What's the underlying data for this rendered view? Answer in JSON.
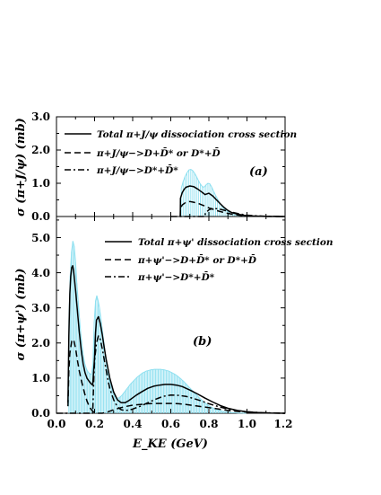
{
  "chart_data": [
    {
      "type": "line",
      "panel_label": "(a)",
      "ylabel": "σ (π+J/ψ) (mb)",
      "xlim": [
        0.0,
        1.2
      ],
      "ylim": [
        0.0,
        3.0
      ],
      "yticks": [
        "0.0",
        "1.0",
        "2.0",
        "3.0"
      ],
      "x_tick_values": [
        0.0,
        0.2,
        0.4,
        0.6,
        0.8,
        1.0,
        1.2
      ],
      "y_tick_values": [
        0.0,
        1.0,
        2.0,
        3.0
      ],
      "legend": [
        {
          "name": "Total π+J/ψ dissociation cross section",
          "style": "solid"
        },
        {
          "name": "π+J/ψ−>D+D̄* or D*+D̄",
          "style": "dashed"
        },
        {
          "name": "π+J/ψ−>D*+D̄*",
          "style": "dashdot"
        }
      ],
      "series": [
        {
          "name": "Total π+J/ψ dissociation cross section",
          "style": "solid",
          "x": [
            0.65,
            0.651,
            0.66,
            0.67,
            0.68,
            0.7,
            0.72,
            0.74,
            0.76,
            0.78,
            0.79,
            0.8,
            0.82,
            0.84,
            0.86,
            0.88,
            0.9,
            0.92,
            0.95,
            0.98,
            1.0,
            1.05,
            1.1,
            1.2
          ],
          "y": [
            0.0,
            0.55,
            0.72,
            0.82,
            0.88,
            0.92,
            0.9,
            0.83,
            0.75,
            0.66,
            0.68,
            0.7,
            0.62,
            0.5,
            0.38,
            0.27,
            0.18,
            0.12,
            0.07,
            0.04,
            0.025,
            0.01,
            0.003,
            0.0
          ]
        },
        {
          "name": "π+J/ψ−>D+D̄* or D*+D̄",
          "style": "dashed",
          "x": [
            0.65,
            0.651,
            0.66,
            0.68,
            0.7,
            0.72,
            0.75,
            0.78,
            0.8,
            0.84,
            0.88,
            0.92,
            0.96,
            1.0,
            1.05,
            1.1,
            1.2
          ],
          "y": [
            0.0,
            0.25,
            0.35,
            0.43,
            0.45,
            0.43,
            0.38,
            0.31,
            0.26,
            0.18,
            0.12,
            0.07,
            0.04,
            0.02,
            0.01,
            0.003,
            0.0
          ]
        },
        {
          "name": "π+J/ψ−>D*+D̄*",
          "style": "dashdot",
          "x": [
            0.6,
            0.78,
            0.781,
            0.8,
            0.82,
            0.85,
            0.88,
            0.92,
            0.96,
            1.0,
            1.05,
            1.1,
            1.2
          ],
          "y": [
            0.0,
            0.0,
            0.1,
            0.2,
            0.24,
            0.23,
            0.19,
            0.13,
            0.08,
            0.04,
            0.02,
            0.007,
            0.0
          ]
        }
      ],
      "error_band": {
        "x": [
          0.655,
          0.665,
          0.675,
          0.685,
          0.695,
          0.705,
          0.715,
          0.725,
          0.735,
          0.745,
          0.755,
          0.765,
          0.775,
          0.785,
          0.795,
          0.805,
          0.815,
          0.825,
          0.835,
          0.845,
          0.855,
          0.865,
          0.875,
          0.885,
          0.895,
          0.905,
          0.915,
          0.925,
          0.935,
          0.945,
          0.955,
          0.965,
          0.975,
          0.985,
          0.995
        ],
        "y": [
          0.85,
          1.05,
          1.2,
          1.32,
          1.4,
          1.42,
          1.38,
          1.3,
          1.2,
          1.08,
          0.98,
          0.9,
          0.88,
          0.95,
          1.0,
          0.98,
          0.88,
          0.76,
          0.64,
          0.53,
          0.43,
          0.34,
          0.27,
          0.21,
          0.16,
          0.12,
          0.09,
          0.07,
          0.05,
          0.04,
          0.03,
          0.02,
          0.015,
          0.01,
          0.005
        ],
        "color": "#8fe0f0"
      }
    },
    {
      "type": "line",
      "panel_label": "(b)",
      "ylabel": "σ (π+ψ') (mb)",
      "xlabel": "E_KE (GeV)",
      "xticks": [
        "0.0",
        "0.2",
        "0.4",
        "0.6",
        "0.8",
        "1.0",
        "1.2"
      ],
      "yticks": [
        "0.0",
        "1.0",
        "2.0",
        "3.0",
        "4.0",
        "5.0"
      ],
      "xlim": [
        0.0,
        1.2
      ],
      "ylim": [
        0.0,
        5.6
      ],
      "x_tick_values": [
        0.0,
        0.2,
        0.4,
        0.6,
        0.8,
        1.0,
        1.2
      ],
      "y_tick_values": [
        0.0,
        1.0,
        2.0,
        3.0,
        4.0,
        5.0
      ],
      "legend": [
        {
          "name": "Total π+ψ' dissociation cross section",
          "style": "solid"
        },
        {
          "name": "π+ψ'−>D+D̄* or D*+D̄",
          "style": "dashed"
        },
        {
          "name": "π+ψ'−>D*+D̄*",
          "style": "dashdot"
        }
      ],
      "series": [
        {
          "name": "Total π+ψ' dissociation cross section",
          "style": "solid",
          "x": [
            0.06,
            0.065,
            0.07,
            0.075,
            0.08,
            0.085,
            0.09,
            0.1,
            0.11,
            0.12,
            0.13,
            0.14,
            0.15,
            0.16,
            0.17,
            0.18,
            0.19,
            0.2,
            0.205,
            0.21,
            0.22,
            0.23,
            0.24,
            0.25,
            0.26,
            0.28,
            0.3,
            0.32,
            0.34,
            0.36,
            0.38,
            0.4,
            0.42,
            0.45,
            0.48,
            0.51,
            0.54,
            0.57,
            0.6,
            0.63,
            0.66,
            0.7,
            0.74,
            0.78,
            0.82,
            0.86,
            0.9,
            0.95,
            1.0,
            1.05,
            1.1,
            1.2
          ],
          "y": [
            0.3,
            2.2,
            3.4,
            3.9,
            4.15,
            4.2,
            4.05,
            3.5,
            2.9,
            2.3,
            1.8,
            1.4,
            1.15,
            1.0,
            0.92,
            0.85,
            0.8,
            1.6,
            2.3,
            2.65,
            2.75,
            2.55,
            2.25,
            1.9,
            1.55,
            1.0,
            0.6,
            0.38,
            0.3,
            0.3,
            0.36,
            0.44,
            0.52,
            0.62,
            0.71,
            0.77,
            0.8,
            0.82,
            0.82,
            0.8,
            0.76,
            0.66,
            0.55,
            0.43,
            0.32,
            0.22,
            0.14,
            0.08,
            0.04,
            0.02,
            0.008,
            0.0
          ]
        },
        {
          "name": "π+ψ'−>D+D̄* or D*+D̄",
          "style": "dashed",
          "x": [
            0.06,
            0.065,
            0.07,
            0.08,
            0.09,
            0.1,
            0.11,
            0.12,
            0.13,
            0.14,
            0.15,
            0.16,
            0.17,
            0.18,
            0.19,
            0.2,
            0.21,
            0.22,
            0.23,
            0.24,
            0.26,
            0.28,
            0.3,
            0.32,
            0.34,
            0.36,
            0.38,
            0.4,
            0.44,
            0.48,
            0.52,
            0.56,
            0.6,
            0.64,
            0.68,
            0.72,
            0.76,
            0.8,
            0.85,
            0.9,
            0.95,
            1.0,
            1.1,
            1.2
          ],
          "y": [
            0.2,
            1.2,
            1.7,
            2.05,
            2.1,
            1.85,
            1.5,
            1.2,
            0.95,
            0.72,
            0.52,
            0.35,
            0.22,
            0.12,
            0.06,
            0.02,
            0.01,
            0.0,
            0.0,
            0.0,
            0.02,
            0.06,
            0.1,
            0.13,
            0.16,
            0.19,
            0.21,
            0.23,
            0.25,
            0.27,
            0.28,
            0.28,
            0.28,
            0.27,
            0.25,
            0.22,
            0.19,
            0.16,
            0.12,
            0.08,
            0.05,
            0.03,
            0.01,
            0.0
          ]
        },
        {
          "name": "π+ψ'−>D*+D̄*",
          "style": "dashdot",
          "x": [
            0.0,
            0.19,
            0.195,
            0.2,
            0.21,
            0.22,
            0.23,
            0.24,
            0.25,
            0.26,
            0.27,
            0.28,
            0.3,
            0.32,
            0.34,
            0.36,
            0.38,
            0.4,
            0.44,
            0.48,
            0.52,
            0.56,
            0.6,
            0.64,
            0.68,
            0.72,
            0.76,
            0.8,
            0.85,
            0.9,
            0.95,
            1.0,
            1.1,
            1.2
          ],
          "y": [
            0.0,
            0.0,
            0.8,
            1.5,
            2.0,
            2.2,
            2.1,
            1.85,
            1.55,
            1.25,
            0.95,
            0.7,
            0.38,
            0.18,
            0.1,
            0.08,
            0.09,
            0.12,
            0.2,
            0.3,
            0.4,
            0.48,
            0.52,
            0.51,
            0.48,
            0.42,
            0.35,
            0.27,
            0.19,
            0.12,
            0.07,
            0.04,
            0.01,
            0.0
          ]
        }
      ],
      "error_band": {
        "x": [
          0.065,
          0.072,
          0.079,
          0.086,
          0.093,
          0.1,
          0.107,
          0.114,
          0.121,
          0.128,
          0.135,
          0.142,
          0.149,
          0.156,
          0.163,
          0.17,
          0.177,
          0.184,
          0.191,
          0.198,
          0.205,
          0.212,
          0.219,
          0.226,
          0.233,
          0.24,
          0.247,
          0.254,
          0.261,
          0.268,
          0.275,
          0.282,
          0.289,
          0.296,
          0.303,
          0.31,
          0.317,
          0.324,
          0.331,
          0.338,
          0.345,
          0.352,
          0.359,
          0.366,
          0.373,
          0.38,
          0.387,
          0.394,
          0.401,
          0.408,
          0.415,
          0.422,
          0.429,
          0.436,
          0.443,
          0.45,
          0.457,
          0.464,
          0.471,
          0.478,
          0.485,
          0.492,
          0.499,
          0.506,
          0.513,
          0.52,
          0.527,
          0.534,
          0.541,
          0.548,
          0.555,
          0.562,
          0.569,
          0.576,
          0.583,
          0.59,
          0.597,
          0.604,
          0.611,
          0.618,
          0.625,
          0.632,
          0.639,
          0.646,
          0.653,
          0.66,
          0.667,
          0.674,
          0.681,
          0.688,
          0.695,
          0.702,
          0.709,
          0.716,
          0.723,
          0.73,
          0.737,
          0.744,
          0.751,
          0.758,
          0.765,
          0.772,
          0.779,
          0.786,
          0.793,
          0.8,
          0.807,
          0.814,
          0.821,
          0.828,
          0.835,
          0.842,
          0.849,
          0.856,
          0.863,
          0.87,
          0.877,
          0.884,
          0.891,
          0.898,
          0.905,
          0.912,
          0.919,
          0.926,
          0.933,
          0.94,
          0.947,
          0.954,
          0.961,
          0.968,
          0.975,
          0.982,
          0.989,
          0.996
        ],
        "y": [
          2.6,
          3.9,
          4.6,
          4.9,
          4.75,
          4.3,
          3.7,
          3.2,
          2.7,
          2.25,
          1.9,
          1.6,
          1.4,
          1.28,
          1.2,
          1.15,
          1.12,
          1.1,
          1.4,
          2.6,
          3.2,
          3.35,
          3.2,
          3.0,
          2.7,
          2.4,
          2.1,
          1.8,
          1.52,
          1.26,
          1.04,
          0.85,
          0.7,
          0.58,
          0.5,
          0.45,
          0.43,
          0.43,
          0.45,
          0.48,
          0.52,
          0.57,
          0.62,
          0.67,
          0.72,
          0.77,
          0.82,
          0.86,
          0.9,
          0.94,
          0.98,
          1.02,
          1.05,
          1.08,
          1.11,
          1.14,
          1.16,
          1.18,
          1.2,
          1.21,
          1.22,
          1.23,
          1.24,
          1.24,
          1.25,
          1.25,
          1.25,
          1.25,
          1.25,
          1.25,
          1.24,
          1.24,
          1.23,
          1.22,
          1.21,
          1.2,
          1.18,
          1.16,
          1.14,
          1.12,
          1.1,
          1.07,
          1.04,
          1.01,
          0.98,
          0.94,
          0.91,
          0.87,
          0.83,
          0.79,
          0.75,
          0.71,
          0.67,
          0.63,
          0.59,
          0.55,
          0.51,
          0.47,
          0.43,
          0.4,
          0.36,
          0.33,
          0.3,
          0.27,
          0.24,
          0.21,
          0.19,
          0.17,
          0.15,
          0.13,
          0.11,
          0.1,
          0.09,
          0.08,
          0.07,
          0.06,
          0.05,
          0.045,
          0.04,
          0.035,
          0.03,
          0.025,
          0.02,
          0.018,
          0.015,
          0.012,
          0.01,
          0.008,
          0.006,
          0.005,
          0.004,
          0.003,
          0.002,
          0.001
        ],
        "color": "#8fe0f0"
      }
    }
  ]
}
